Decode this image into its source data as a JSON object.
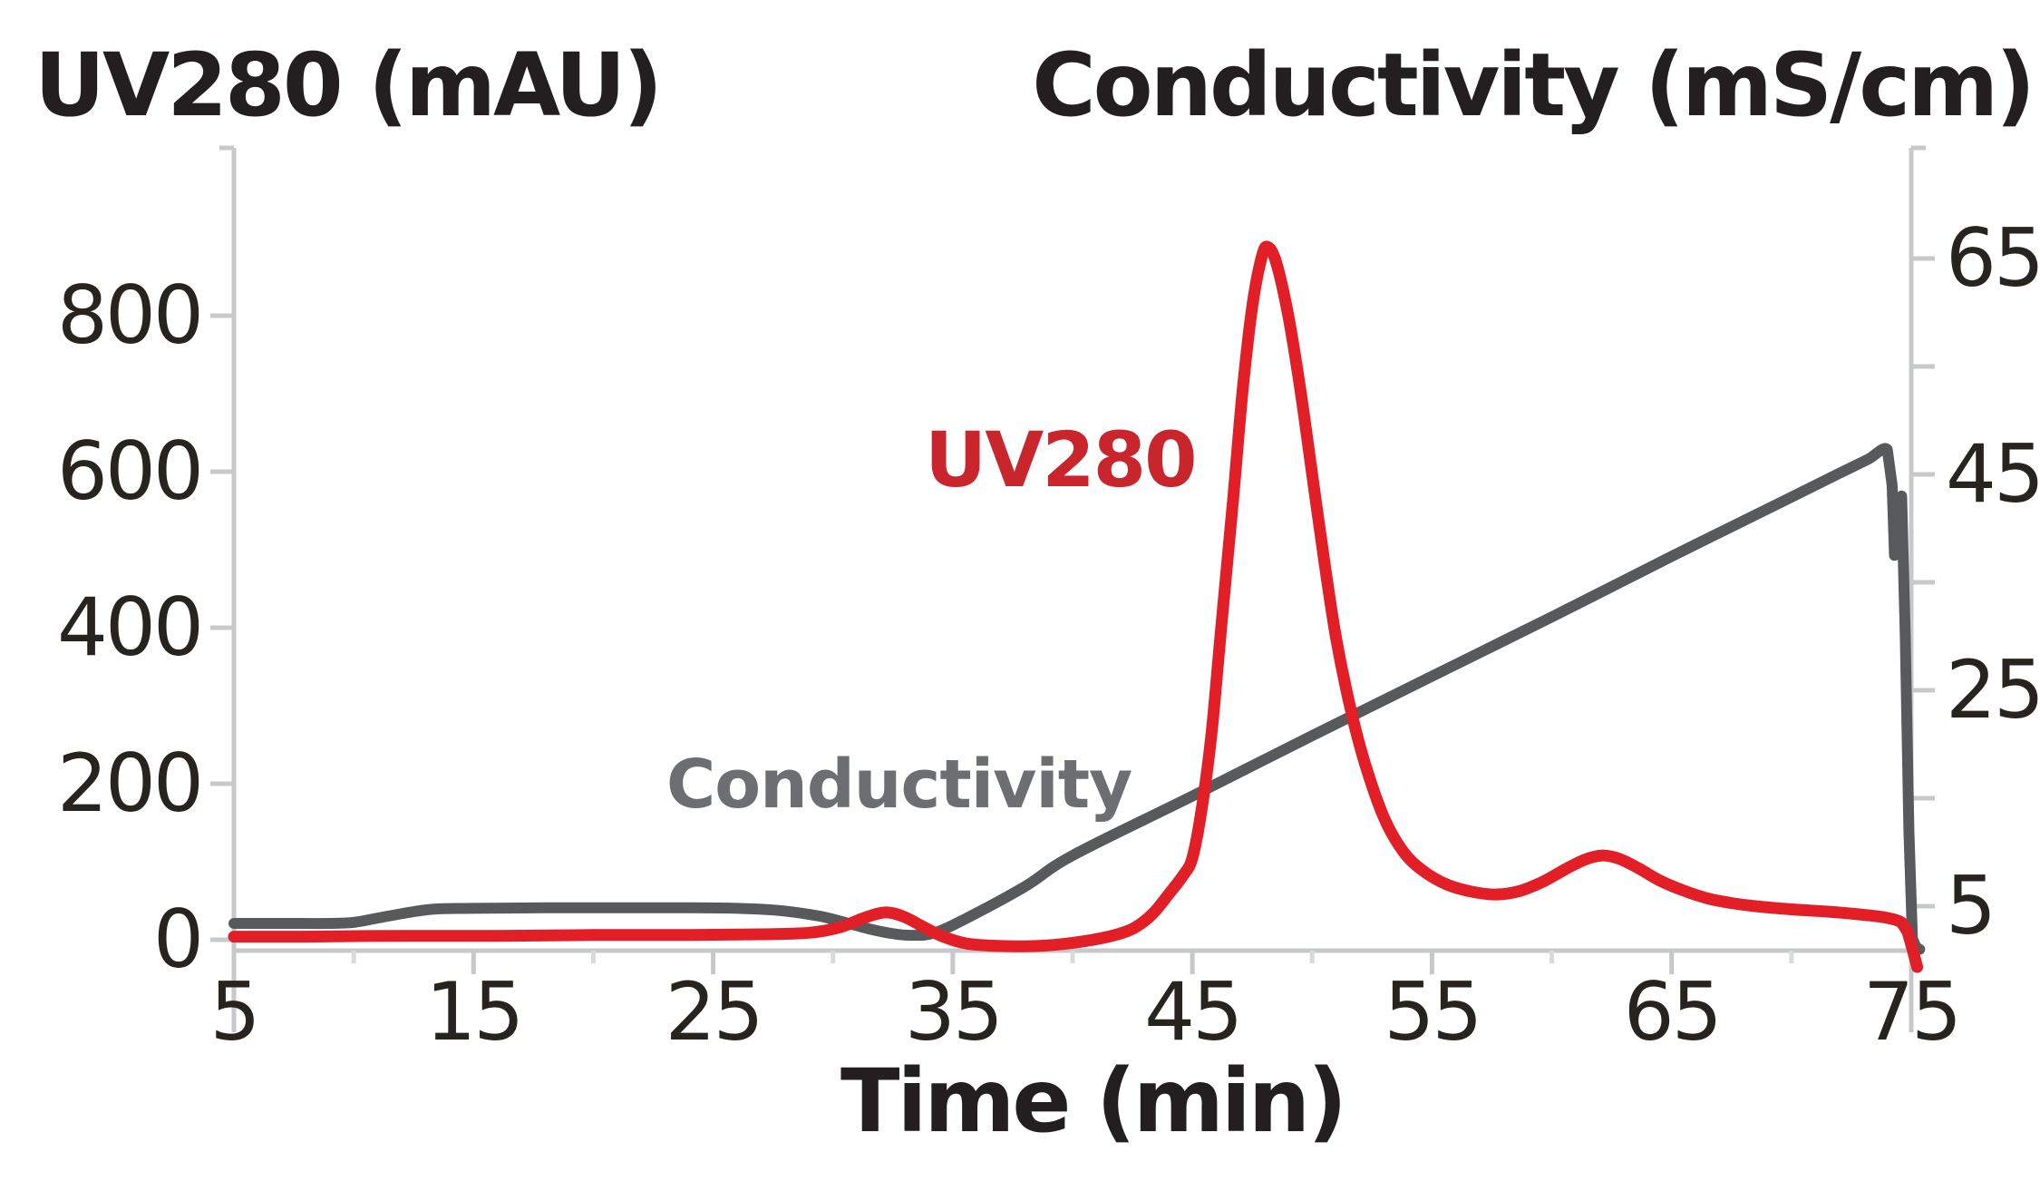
{
  "figure": {
    "title_left": "UV280 (mAU)",
    "title_right": "Conductivity (mS/cm)",
    "x_label": "Time (min)",
    "background": "#FFFFFF"
  },
  "colors": {
    "axis_line": "#C7C8CA",
    "minor_tick": "#D9DADB",
    "tick_text": "#27241F",
    "title_text": "#231F20"
  },
  "chart_data": {
    "type": "line",
    "title": "",
    "xlabel": "Time (min)",
    "grid": false,
    "legend": "inline-annotations",
    "x_axis": {
      "unit": "min",
      "min": 5,
      "max": 75.5,
      "major_ticks": [
        5,
        15,
        25,
        35,
        45,
        55,
        65,
        75
      ],
      "minor_ticks": [
        10,
        20,
        30,
        40,
        50,
        60,
        70
      ]
    },
    "left_y_axis": {
      "label": "UV280 (mAU)",
      "unit": "mAU",
      "ticks": [
        0,
        200,
        400,
        600,
        800
      ],
      "range": [
        -50,
        1010
      ]
    },
    "right_y_axis": {
      "label": "Conductivity (mS/cm)",
      "unit": "mS/cm",
      "labeled_ticks": [
        5,
        25,
        45,
        65
      ],
      "unlabeled_ticks": [
        15,
        35,
        55
      ],
      "range": [
        0,
        75
      ]
    },
    "series": [
      {
        "name": "Conductivity",
        "annotation": "Conductivity",
        "axis": "right",
        "color": "#58595B",
        "label_color": "#6D6E71",
        "stroke_width": 12,
        "sharp_segment_start_t": 74.0,
        "points": [
          [
            5,
            3.4
          ],
          [
            7,
            3.4
          ],
          [
            9,
            3.4
          ],
          [
            10,
            3.5
          ],
          [
            11,
            3.9
          ],
          [
            12.5,
            4.5
          ],
          [
            13.5,
            4.75
          ],
          [
            15,
            4.8
          ],
          [
            18,
            4.85
          ],
          [
            21,
            4.85
          ],
          [
            24,
            4.85
          ],
          [
            26,
            4.8
          ],
          [
            27.5,
            4.65
          ],
          [
            28.5,
            4.4
          ],
          [
            29.5,
            4.05
          ],
          [
            30.5,
            3.5
          ],
          [
            31.5,
            2.9
          ],
          [
            32.5,
            2.45
          ],
          [
            33.3,
            2.3
          ],
          [
            34.2,
            2.5
          ],
          [
            35.5,
            3.8
          ],
          [
            38,
            6.8
          ],
          [
            40,
            9.7
          ],
          [
            45,
            15.2
          ],
          [
            50,
            20.8
          ],
          [
            55,
            26.3
          ],
          [
            60,
            31.8
          ],
          [
            65,
            37.4
          ],
          [
            70,
            42.9
          ],
          [
            72,
            45.1
          ],
          [
            73.2,
            46.4
          ],
          [
            74,
            47.3
          ],
          [
            74.2,
            44
          ],
          [
            74.3,
            37.5
          ],
          [
            74.45,
            40.5
          ],
          [
            74.6,
            43
          ],
          [
            74.75,
            30
          ],
          [
            74.9,
            12
          ],
          [
            75.05,
            2
          ],
          [
            75.2,
            1.2
          ],
          [
            75.35,
            1
          ]
        ]
      },
      {
        "name": "UV280",
        "annotation": "UV280",
        "axis": "left",
        "color": "#E21F26",
        "label_color": "#C9252C",
        "stroke_width": 13,
        "sharp_segment_start_t": 74.6,
        "points": [
          [
            5,
            4
          ],
          [
            8,
            4
          ],
          [
            12,
            5
          ],
          [
            16,
            5
          ],
          [
            20,
            6
          ],
          [
            24,
            6
          ],
          [
            27,
            7
          ],
          [
            29,
            9
          ],
          [
            30.3,
            16
          ],
          [
            31.3,
            28
          ],
          [
            32.2,
            35
          ],
          [
            33,
            29
          ],
          [
            33.8,
            16
          ],
          [
            34.6,
            4
          ],
          [
            35.6,
            -5
          ],
          [
            37,
            -8
          ],
          [
            38.5,
            -8
          ],
          [
            40,
            -4
          ],
          [
            41.5,
            4
          ],
          [
            42.5,
            14
          ],
          [
            43.3,
            32
          ],
          [
            44,
            58
          ],
          [
            44.6,
            82
          ],
          [
            45,
            105
          ],
          [
            45.4,
            170
          ],
          [
            45.8,
            265
          ],
          [
            46.2,
            400
          ],
          [
            46.7,
            565
          ],
          [
            47.1,
            705
          ],
          [
            47.5,
            812
          ],
          [
            47.9,
            876
          ],
          [
            48.15,
            888
          ],
          [
            48.5,
            868
          ],
          [
            49,
            800
          ],
          [
            49.5,
            706
          ],
          [
            50,
            596
          ],
          [
            50.5,
            486
          ],
          [
            51,
            386
          ],
          [
            51.6,
            296
          ],
          [
            52.2,
            226
          ],
          [
            53,
            156
          ],
          [
            53.8,
            113
          ],
          [
            54.6,
            89
          ],
          [
            55.6,
            71
          ],
          [
            56.6,
            62
          ],
          [
            57.6,
            58
          ],
          [
            58.6,
            62
          ],
          [
            59.6,
            74
          ],
          [
            60.6,
            91
          ],
          [
            61.4,
            103
          ],
          [
            62.1,
            108
          ],
          [
            62.8,
            104
          ],
          [
            63.6,
            92
          ],
          [
            64.5,
            76
          ],
          [
            65.5,
            63
          ],
          [
            66.5,
            53
          ],
          [
            67.5,
            47
          ],
          [
            68.5,
            43
          ],
          [
            70,
            39
          ],
          [
            71.5,
            36
          ],
          [
            73,
            32
          ],
          [
            74,
            28
          ],
          [
            74.6,
            22
          ],
          [
            74.85,
            10
          ],
          [
            75.05,
            -12
          ],
          [
            75.25,
            -35
          ]
        ]
      }
    ]
  }
}
